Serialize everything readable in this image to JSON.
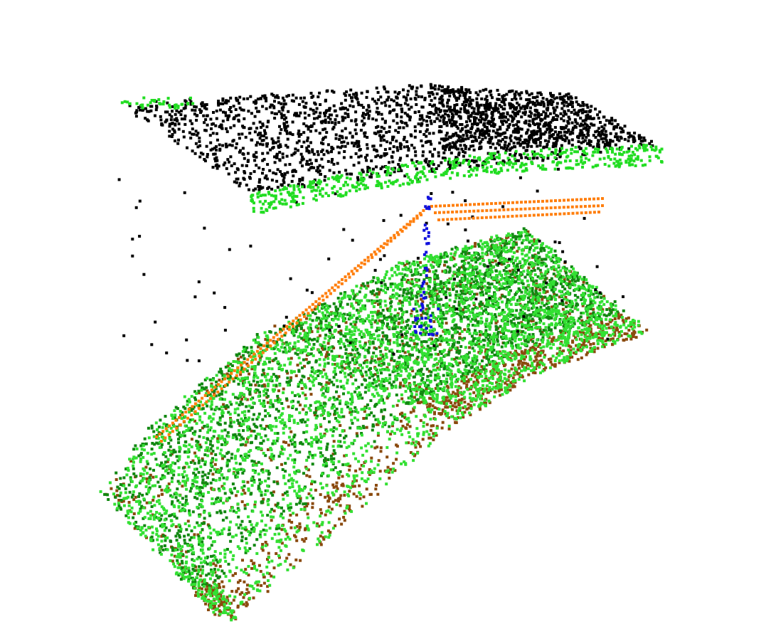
{
  "scene": {
    "type": "point-cloud-rendering",
    "background": "#ffffff",
    "layers": [
      {
        "name": "canopy-vegetation",
        "color": "#000000"
      },
      {
        "name": "canopy-underside-vegetation",
        "color": "#22dd22"
      },
      {
        "name": "ground-vegetation-light",
        "color": "#33e033"
      },
      {
        "name": "ground-vegetation-dark",
        "color": "#118811"
      },
      {
        "name": "bare-earth",
        "color": "#8a4a0e"
      },
      {
        "name": "power-line-wires",
        "color": "#ff7f0e"
      },
      {
        "name": "tower-structure",
        "color": "#1111dd"
      }
    ]
  }
}
